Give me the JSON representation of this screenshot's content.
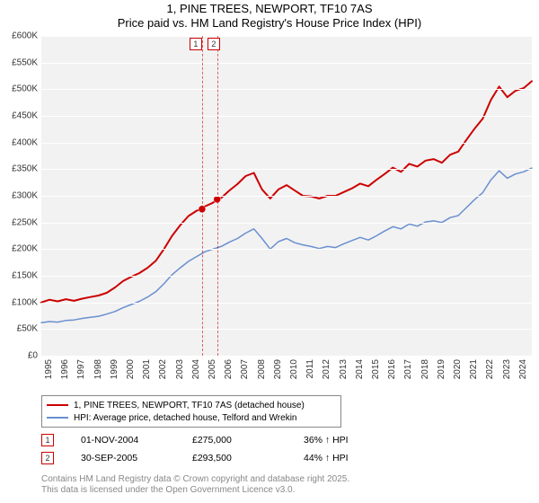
{
  "title": {
    "line1": "1, PINE TREES, NEWPORT, TF10 7AS",
    "line2": "Price paid vs. HM Land Registry's House Price Index (HPI)"
  },
  "chart": {
    "type": "line",
    "background_color": "#f2f2f2",
    "grid_color": "#ffffff",
    "y": {
      "min": 0,
      "max": 600000,
      "tick_step": 50000,
      "labels": [
        "£0",
        "£50K",
        "£100K",
        "£150K",
        "£200K",
        "£250K",
        "£300K",
        "£350K",
        "£400K",
        "£450K",
        "£500K",
        "£550K",
        "£600K"
      ]
    },
    "x": {
      "min": 1995,
      "max": 2025,
      "labels": [
        "1995",
        "1996",
        "1997",
        "1998",
        "1999",
        "2000",
        "2001",
        "2002",
        "2003",
        "2004",
        "2005",
        "2006",
        "2007",
        "2008",
        "2009",
        "2010",
        "2011",
        "2012",
        "2013",
        "2014",
        "2015",
        "2016",
        "2017",
        "2018",
        "2019",
        "2020",
        "2021",
        "2022",
        "2023",
        "2024"
      ]
    },
    "series": [
      {
        "name": "1, PINE TREES, NEWPORT, TF10 7AS (detached house)",
        "color": "#cc0000",
        "width": 2,
        "data": [
          [
            1995,
            100000
          ],
          [
            1995.5,
            105000
          ],
          [
            1996,
            102000
          ],
          [
            1996.5,
            106000
          ],
          [
            1997,
            103000
          ],
          [
            1997.5,
            107000
          ],
          [
            1998,
            110000
          ],
          [
            1998.5,
            113000
          ],
          [
            1999,
            118000
          ],
          [
            1999.5,
            128000
          ],
          [
            2000,
            140000
          ],
          [
            2000.5,
            148000
          ],
          [
            2001,
            155000
          ],
          [
            2001.5,
            165000
          ],
          [
            2002,
            178000
          ],
          [
            2002.5,
            200000
          ],
          [
            2003,
            225000
          ],
          [
            2003.5,
            245000
          ],
          [
            2004,
            262000
          ],
          [
            2004.5,
            272000
          ],
          [
            2004.83,
            275000
          ],
          [
            2005,
            280000
          ],
          [
            2005.5,
            287000
          ],
          [
            2005.75,
            293500
          ],
          [
            2006,
            296000
          ],
          [
            2006.5,
            310000
          ],
          [
            2007,
            322000
          ],
          [
            2007.5,
            337000
          ],
          [
            2008,
            343000
          ],
          [
            2008.5,
            312000
          ],
          [
            2009,
            295000
          ],
          [
            2009.5,
            312000
          ],
          [
            2010,
            320000
          ],
          [
            2010.5,
            310000
          ],
          [
            2011,
            300000
          ],
          [
            2011.5,
            299000
          ],
          [
            2012,
            295000
          ],
          [
            2012.5,
            300000
          ],
          [
            2013,
            300000
          ],
          [
            2013.5,
            307000
          ],
          [
            2014,
            314000
          ],
          [
            2014.5,
            323000
          ],
          [
            2015,
            318000
          ],
          [
            2015.5,
            330000
          ],
          [
            2016,
            341000
          ],
          [
            2016.5,
            353000
          ],
          [
            2017,
            345000
          ],
          [
            2017.5,
            360000
          ],
          [
            2018,
            355000
          ],
          [
            2018.5,
            366000
          ],
          [
            2019,
            369000
          ],
          [
            2019.5,
            362000
          ],
          [
            2020,
            377000
          ],
          [
            2020.5,
            383000
          ],
          [
            2021,
            405000
          ],
          [
            2021.5,
            426000
          ],
          [
            2022,
            445000
          ],
          [
            2022.5,
            480000
          ],
          [
            2023,
            505000
          ],
          [
            2023.5,
            485000
          ],
          [
            2024,
            497000
          ],
          [
            2024.5,
            502000
          ],
          [
            2025,
            515000
          ]
        ],
        "markers": [
          {
            "label": "1",
            "x": 2004.83,
            "y": 275000
          },
          {
            "label": "2",
            "x": 2005.75,
            "y": 293500
          }
        ]
      },
      {
        "name": "HPI: Average price, detached house, Telford and Wrekin",
        "color": "#6a8fd0",
        "width": 1.5,
        "data": [
          [
            1995,
            62000
          ],
          [
            1995.5,
            64000
          ],
          [
            1996,
            63000
          ],
          [
            1996.5,
            66000
          ],
          [
            1997,
            67000
          ],
          [
            1997.5,
            70000
          ],
          [
            1998,
            72000
          ],
          [
            1998.5,
            74000
          ],
          [
            1999,
            78000
          ],
          [
            1999.5,
            83000
          ],
          [
            2000,
            90000
          ],
          [
            2000.5,
            96000
          ],
          [
            2001,
            102000
          ],
          [
            2001.5,
            110000
          ],
          [
            2002,
            120000
          ],
          [
            2002.5,
            135000
          ],
          [
            2003,
            152000
          ],
          [
            2003.5,
            165000
          ],
          [
            2004,
            177000
          ],
          [
            2004.5,
            186000
          ],
          [
            2005,
            195000
          ],
          [
            2005.5,
            200000
          ],
          [
            2006,
            205000
          ],
          [
            2006.5,
            213000
          ],
          [
            2007,
            220000
          ],
          [
            2007.5,
            230000
          ],
          [
            2008,
            238000
          ],
          [
            2008.5,
            220000
          ],
          [
            2009,
            200000
          ],
          [
            2009.5,
            214000
          ],
          [
            2010,
            220000
          ],
          [
            2010.5,
            212000
          ],
          [
            2011,
            208000
          ],
          [
            2011.5,
            205000
          ],
          [
            2012,
            201000
          ],
          [
            2012.5,
            205000
          ],
          [
            2013,
            203000
          ],
          [
            2013.5,
            210000
          ],
          [
            2014,
            216000
          ],
          [
            2014.5,
            222000
          ],
          [
            2015,
            217000
          ],
          [
            2015.5,
            225000
          ],
          [
            2016,
            234000
          ],
          [
            2016.5,
            242000
          ],
          [
            2017,
            238000
          ],
          [
            2017.5,
            247000
          ],
          [
            2018,
            243000
          ],
          [
            2018.5,
            251000
          ],
          [
            2019,
            253000
          ],
          [
            2019.5,
            250000
          ],
          [
            2020,
            259000
          ],
          [
            2020.5,
            263000
          ],
          [
            2021,
            278000
          ],
          [
            2021.5,
            293000
          ],
          [
            2022,
            306000
          ],
          [
            2022.5,
            330000
          ],
          [
            2023,
            347000
          ],
          [
            2023.5,
            333000
          ],
          [
            2024,
            341000
          ],
          [
            2024.5,
            345000
          ],
          [
            2025,
            352000
          ]
        ]
      }
    ]
  },
  "price_points": [
    {
      "marker": "1",
      "date": "01-NOV-2004",
      "price": "£275,000",
      "comparison": "36% ↑ HPI"
    },
    {
      "marker": "2",
      "date": "30-SEP-2005",
      "price": "£293,500",
      "comparison": "44% ↑ HPI"
    }
  ],
  "attribution": {
    "line1": "Contains HM Land Registry data © Crown copyright and database right 2025.",
    "line2": "This data is licensed under the Open Government Licence v3.0."
  }
}
